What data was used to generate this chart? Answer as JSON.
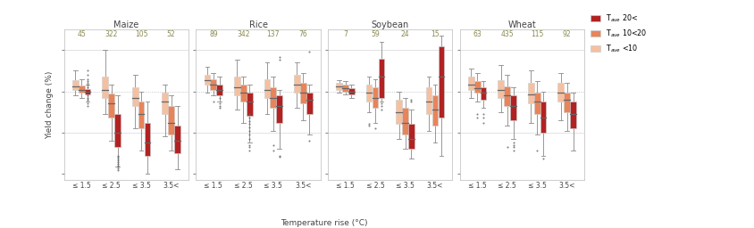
{
  "crops": [
    "Maize",
    "Rice",
    "Soybean",
    "Wheat"
  ],
  "temp_categories": [
    "≤ 1.5",
    "≤ 2.5",
    "≤ 3.5",
    "3.5<"
  ],
  "sample_counts": {
    "Maize": [
      45,
      322,
      105,
      52
    ],
    "Rice": [
      89,
      342,
      137,
      76
    ],
    "Soybean": [
      7,
      59,
      24,
      15
    ],
    "Wheat": [
      63,
      435,
      115,
      92
    ]
  },
  "colors": {
    "cool": "#f5c0a0",
    "mid": "#e8845a",
    "hot": "#b22222"
  },
  "median_color_hot": "#888888",
  "median_color_mid": "#888888",
  "median_color_cool": "#888888",
  "whisker_color": "#888888",
  "outlier_color": "#666666",
  "box_edge_color": "#cccccc",
  "ylabel": "Yield change (%)",
  "xlabel": "Temperature rise (°C)",
  "ylim": [
    -108,
    75
  ],
  "yticks": [
    -100,
    -50,
    0,
    50
  ],
  "count_color": "#8a8a50",
  "title_color": "#444444",
  "legend_labels": [
    "T$_{ave}$ 20<",
    "T$_{ave}$ 10<20",
    "T$_{ave}$ <10"
  ],
  "box_data": {
    "Maize": {
      "≤ 1.5": {
        "cool": {
          "q1": 2,
          "med": 6,
          "q3": 14,
          "whislo": -5,
          "whishi": 25,
          "fliers": []
        },
        "mid": {
          "q1": -2,
          "med": 2,
          "q3": 7,
          "whislo": -8,
          "whishi": 15,
          "fliers": []
        },
        "hot": {
          "q1": -4,
          "med": -1,
          "q3": 3,
          "whislo": -12,
          "whishi": 8,
          "fliers": [
            -18,
            -10,
            -15,
            8,
            12,
            15,
            20,
            5,
            -5,
            25,
            -8,
            10
          ]
        }
      },
      "≤ 2.5": {
        "cool": {
          "q1": -8,
          "med": 2,
          "q3": 18,
          "whislo": -28,
          "whishi": 50,
          "fliers": []
        },
        "mid": {
          "q1": -32,
          "med": -15,
          "q3": -3,
          "whislo": -60,
          "whishi": 8,
          "fliers": []
        },
        "hot": {
          "q1": -68,
          "med": -50,
          "q3": -28,
          "whislo": -92,
          "whishi": -5,
          "fliers": [
            -96,
            -94,
            -92,
            -90,
            -88,
            -86,
            -84,
            -82,
            -80,
            -78
          ]
        }
      },
      "≤ 3.5": {
        "cool": {
          "q1": -18,
          "med": -8,
          "q3": 5,
          "whislo": -45,
          "whishi": 20,
          "fliers": []
        },
        "mid": {
          "q1": -45,
          "med": -28,
          "q3": -12,
          "whislo": -72,
          "whishi": 0,
          "fliers": []
        },
        "hot": {
          "q1": -78,
          "med": -62,
          "q3": -38,
          "whislo": -100,
          "whishi": -12,
          "fliers": []
        }
      },
      "3.5<": {
        "cool": {
          "q1": -28,
          "med": -12,
          "q3": -2,
          "whislo": -55,
          "whishi": 8,
          "fliers": []
        },
        "mid": {
          "q1": -52,
          "med": -38,
          "q3": -18,
          "whislo": -72,
          "whishi": -5,
          "fliers": []
        },
        "hot": {
          "q1": -75,
          "med": -60,
          "q3": -42,
          "whislo": -95,
          "whishi": -18,
          "fliers": []
        }
      }
    },
    "Rice": {
      "≤ 1.5": {
        "cool": {
          "q1": 8,
          "med": 14,
          "q3": 20,
          "whislo": -2,
          "whishi": 30,
          "fliers": []
        },
        "mid": {
          "q1": 2,
          "med": 8,
          "q3": 15,
          "whislo": -5,
          "whishi": 22,
          "fliers": [
            -12
          ]
        },
        "hot": {
          "q1": -5,
          "med": 2,
          "q3": 8,
          "whislo": -12,
          "whishi": 18,
          "fliers": [
            -18,
            -15,
            -20,
            -8
          ]
        }
      },
      "≤ 2.5": {
        "cool": {
          "q1": -5,
          "med": 5,
          "q3": 18,
          "whislo": -22,
          "whishi": 38,
          "fliers": []
        },
        "mid": {
          "q1": -12,
          "med": -2,
          "q3": 8,
          "whislo": -38,
          "whishi": 18,
          "fliers": []
        },
        "hot": {
          "q1": -30,
          "med": -12,
          "q3": -2,
          "whislo": -62,
          "whishi": 8,
          "fliers": [
            -68,
            -72,
            -65,
            -58,
            -52,
            -48,
            -44,
            -40,
            -36,
            -32,
            -28
          ]
        }
      },
      "≤ 3.5": {
        "cool": {
          "q1": -8,
          "med": 2,
          "q3": 15,
          "whislo": -28,
          "whishi": 35,
          "fliers": []
        },
        "mid": {
          "q1": -20,
          "med": -8,
          "q3": 5,
          "whislo": -48,
          "whishi": 18,
          "fliers": [
            -65,
            -72
          ]
        },
        "hot": {
          "q1": -38,
          "med": -18,
          "q3": -5,
          "whislo": -70,
          "whishi": 2,
          "fliers": [
            -78,
            -80,
            38,
            42
          ]
        }
      },
      "3.5<": {
        "cool": {
          "q1": -2,
          "med": 8,
          "q3": 20,
          "whislo": -20,
          "whishi": 35,
          "fliers": []
        },
        "mid": {
          "q1": -15,
          "med": -2,
          "q3": 10,
          "whislo": -35,
          "whishi": 22,
          "fliers": []
        },
        "hot": {
          "q1": -28,
          "med": -10,
          "q3": -2,
          "whislo": -52,
          "whishi": 8,
          "fliers": [
            -60,
            48
          ]
        }
      }
    },
    "Soybean": {
      "≤ 1.5": {
        "cool": {
          "q1": 2,
          "med": 6,
          "q3": 10,
          "whislo": -2,
          "whishi": 14,
          "fliers": []
        },
        "mid": {
          "q1": 0,
          "med": 4,
          "q3": 8,
          "whislo": -4,
          "whishi": 12,
          "fliers": []
        },
        "hot": {
          "q1": -4,
          "med": -1,
          "q3": 4,
          "whislo": -8,
          "whishi": 8,
          "fliers": []
        }
      },
      "≤ 2.5": {
        "cool": {
          "q1": -12,
          "med": -2,
          "q3": 8,
          "whislo": -25,
          "whishi": 18,
          "fliers": [
            -40,
            -42
          ]
        },
        "mid": {
          "q1": -20,
          "med": -8,
          "q3": 5,
          "whislo": -38,
          "whishi": 15,
          "fliers": [
            -45
          ]
        },
        "hot": {
          "q1": -8,
          "med": 18,
          "q3": 40,
          "whislo": -12,
          "whishi": 60,
          "fliers": [
            -18,
            -15,
            -22
          ]
        }
      },
      "≤ 3.5": {
        "cool": {
          "q1": -40,
          "med": -25,
          "q3": -10,
          "whislo": -58,
          "whishi": 0,
          "fliers": []
        },
        "mid": {
          "q1": -52,
          "med": -38,
          "q3": -20,
          "whislo": -70,
          "whishi": -8,
          "fliers": []
        },
        "hot": {
          "q1": -70,
          "med": -58,
          "q3": -40,
          "whislo": -82,
          "whishi": -22,
          "fliers": [
            -10,
            -12
          ]
        }
      },
      "3.5<": {
        "cool": {
          "q1": -28,
          "med": -12,
          "q3": 5,
          "whislo": -48,
          "whishi": 18,
          "fliers": []
        },
        "mid": {
          "q1": -42,
          "med": -22,
          "q3": -5,
          "whislo": -62,
          "whishi": 8,
          "fliers": []
        },
        "hot": {
          "q1": -32,
          "med": 18,
          "q3": 55,
          "whislo": -78,
          "whishi": 68,
          "fliers": []
        }
      }
    },
    "Wheat": {
      "≤ 1.5": {
        "cool": {
          "q1": 2,
          "med": 8,
          "q3": 18,
          "whislo": -8,
          "whishi": 28,
          "fliers": []
        },
        "mid": {
          "q1": -2,
          "med": 4,
          "q3": 12,
          "whislo": -12,
          "whishi": 22,
          "fliers": [
            -28,
            -32
          ]
        },
        "hot": {
          "q1": -10,
          "med": -2,
          "q3": 5,
          "whislo": -20,
          "whishi": 12,
          "fliers": [
            -28,
            -32,
            -38
          ]
        }
      },
      "≤ 2.5": {
        "cool": {
          "q1": -8,
          "med": 2,
          "q3": 14,
          "whislo": -25,
          "whishi": 32,
          "fliers": []
        },
        "mid": {
          "q1": -18,
          "med": -5,
          "q3": 6,
          "whislo": -42,
          "whishi": 20,
          "fliers": [
            -68
          ]
        },
        "hot": {
          "q1": -35,
          "med": -18,
          "q3": -5,
          "whislo": -58,
          "whishi": 5,
          "fliers": [
            -62,
            -65,
            -68,
            -72
          ]
        }
      },
      "≤ 3.5": {
        "cool": {
          "q1": -15,
          "med": -4,
          "q3": 10,
          "whislo": -38,
          "whishi": 25,
          "fliers": []
        },
        "mid": {
          "q1": -28,
          "med": -12,
          "q3": -2,
          "whislo": -52,
          "whishi": 12,
          "fliers": [
            -72
          ]
        },
        "hot": {
          "q1": -50,
          "med": -32,
          "q3": -12,
          "whislo": -78,
          "whishi": 0,
          "fliers": [
            -82
          ]
        }
      },
      "3.5<": {
        "cool": {
          "q1": -12,
          "med": -2,
          "q3": 10,
          "whislo": -35,
          "whishi": 22,
          "fliers": []
        },
        "mid": {
          "q1": -25,
          "med": -10,
          "q3": -2,
          "whislo": -48,
          "whishi": 10,
          "fliers": []
        },
        "hot": {
          "q1": -45,
          "med": -28,
          "q3": -12,
          "whislo": -72,
          "whishi": -2,
          "fliers": []
        }
      }
    }
  }
}
